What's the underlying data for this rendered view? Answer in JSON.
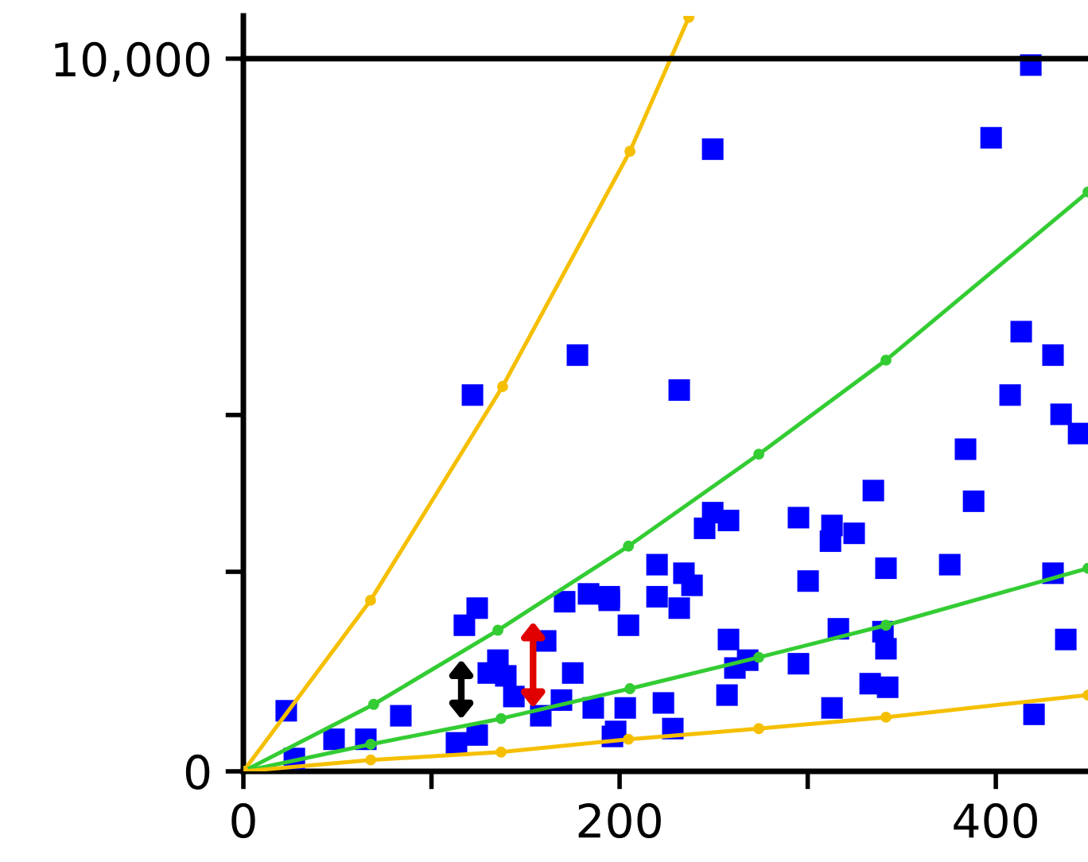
{
  "chart_data": {
    "type": "scatter",
    "xlim": [
      0,
      449
    ],
    "ylim": [
      0,
      10600
    ],
    "xticks": [
      0,
      {
        "value": 100,
        "label": null
      },
      200,
      {
        "value": 300,
        "label": null
      },
      400
    ],
    "yticks": [
      0,
      {
        "value": 2800,
        "label": null
      },
      {
        "value": 5000,
        "label": null
      },
      {
        "value": 10000,
        "label": "10,000"
      }
    ],
    "grid": false,
    "legend": false,
    "ref_lines": [
      {
        "axis": "y",
        "value": 10000,
        "label": null,
        "color": "#000000",
        "line_style": "solid"
      }
    ],
    "series": [
      {
        "type": "line",
        "color": "#f5bf00",
        "marker": "circle",
        "line_style": "solid",
        "x": [
          0,
          67.6,
          137.8,
          205.5,
          236.8
        ],
        "values": [
          0,
          2400,
          5400,
          8700,
          10580
        ]
      },
      {
        "type": "line",
        "color": "#33cc33",
        "marker": "circle",
        "line_style": "solid",
        "x": [
          0,
          69.3,
          135.3,
          204.7,
          274,
          341.6,
          449
        ],
        "values": [
          0,
          940,
          1980,
          3160,
          4450,
          5770,
          8130
        ]
      },
      {
        "type": "line",
        "color": "#33cc33",
        "marker": "circle",
        "line_style": "solid",
        "x": [
          0,
          67.7,
          137,
          205.5,
          274,
          341.6,
          449
        ],
        "values": [
          0,
          380,
          740,
          1160,
          1600,
          2050,
          2850
        ]
      },
      {
        "type": "line",
        "color": "#f5bf00",
        "marker": "circle",
        "line_style": "solid",
        "x": [
          0,
          67.7,
          137,
          204.7,
          274,
          341.6,
          449
        ],
        "values": [
          0,
          160,
          270,
          450,
          600,
          760,
          1070
        ]
      },
      {
        "color": "#0000ff",
        "marker": "square",
        "x": [
          418.6,
          397.5,
          249.5,
          177.6,
          121.8,
          231.7,
          413.5,
          430.4,
          407.6,
          434.7,
          444.0,
          383.9,
          388.2,
          334.9,
          375.5,
          341.6,
          295.1,
          312.9,
          324.7,
          312.1,
          300.2,
          249.5,
          257.9,
          245.2,
          219.9,
          234.2,
          238.5,
          231.7,
          219.9,
          194.5,
          204.7,
          430.4,
          437.2,
          316.3,
          340.0,
          341.6,
          257.9,
          268.1,
          295.1,
          261.3,
          333.2,
          342.5,
          257.1,
          223.3,
          228.3,
          203.0,
          312.9,
          420.3,
          196.2,
          22.8,
          27.1,
          48.2,
          65.1,
          83.7,
          124.3,
          117.5,
          135.3,
          139.5,
          130.2,
          160.7,
          175.1,
          170.8,
          183.5,
          194.5,
          143.8,
          158.1,
          186.0,
          197.9,
          113.3,
          124.3,
          169.1
        ],
        "values": [
          9910,
          8890,
          8730,
          5840,
          5280,
          5350,
          6170,
          5840,
          5280,
          5010,
          4740,
          4520,
          3790,
          3940,
          2900,
          2850,
          3560,
          3450,
          3340,
          3230,
          2670,
          3630,
          3520,
          3410,
          2900,
          2780,
          2610,
          2290,
          2450,
          2450,
          2050,
          2780,
          1850,
          2000,
          1960,
          1720,
          1850,
          1560,
          1510,
          1450,
          1230,
          1180,
          1070,
          960,
          600,
          890,
          890,
          800,
          490,
          850,
          180,
          450,
          450,
          780,
          2290,
          2050,
          1560,
          1340,
          1380,
          1830,
          1380,
          2380,
          2490,
          2400,
          1050,
          780,
          890,
          560,
          400,
          510,
          1000
        ]
      }
    ]
  }
}
